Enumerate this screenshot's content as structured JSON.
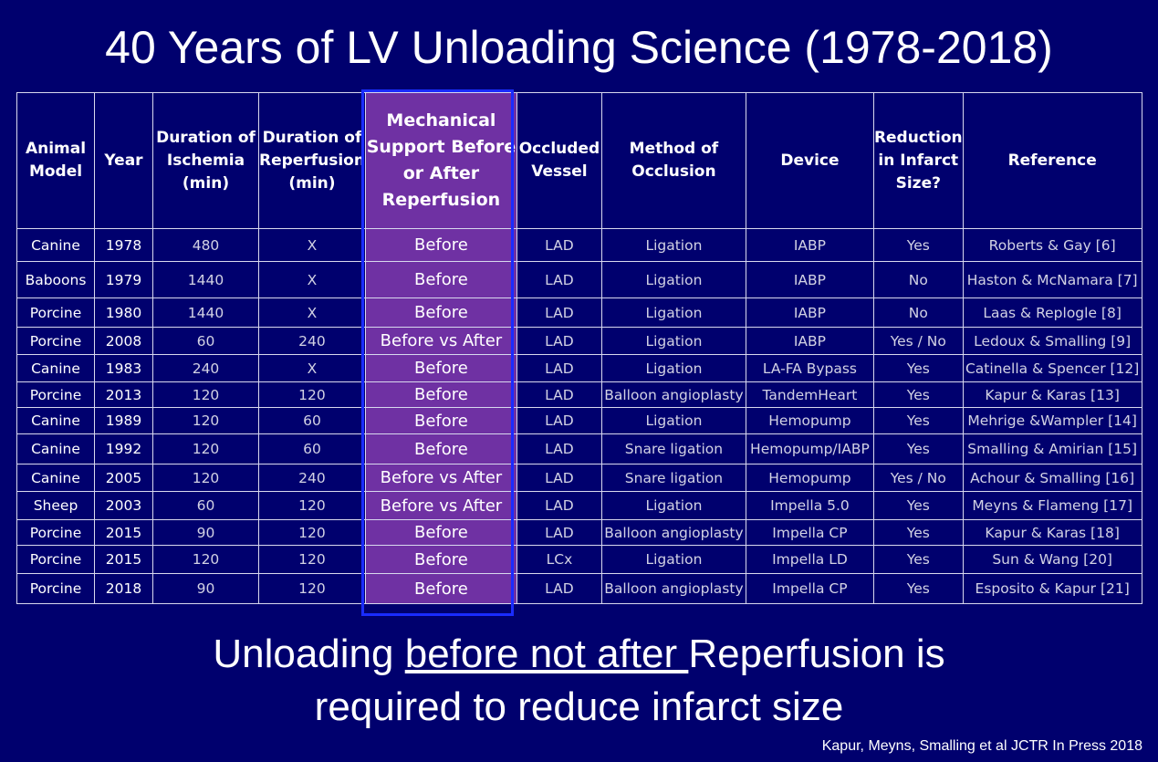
{
  "slide": {
    "title": "40 Years of LV Unloading Science (1978-2018)",
    "conclusion": {
      "before": "Unloading ",
      "underlined": "before not after ",
      "after": "Reperfusion is",
      "line2": "required to reduce infarct size"
    },
    "citation": "Kapur, Meyns, Smalling  et al JCTR In Press 2018"
  },
  "table": {
    "headers": [
      "Animal Model",
      "Year",
      "Duration of Ischemia (min)",
      "Duration of Reperfusion (min)",
      "Mechanical Support Before or After Reperfusion",
      "Occluded Vessel",
      "Method of Occlusion",
      "Device",
      "Reduction in Infarct Size?",
      "Reference"
    ],
    "highlight_color": "#6f31a3",
    "frame_color": "#1a2cff",
    "rows": [
      [
        "Canine",
        "1978",
        "480",
        "X",
        "Before",
        "LAD",
        "Ligation",
        "IABP",
        "Yes",
        "Roberts & Gay [6]"
      ],
      [
        "Baboons",
        "1979",
        "1440",
        "X",
        "Before",
        "LAD",
        "Ligation",
        "IABP",
        "No",
        "Haston  & McNamara [7]"
      ],
      [
        "Porcine",
        "1980",
        "1440",
        "X",
        "Before",
        "LAD",
        "Ligation",
        "IABP",
        "No",
        "Laas & Replogle [8]"
      ],
      [
        "Porcine",
        "2008",
        "60",
        "240",
        "Before vs After",
        "LAD",
        "Ligation",
        "IABP",
        "Yes / No",
        "Ledoux & Smalling [9]"
      ],
      [
        "Canine",
        "1983",
        "240",
        "X",
        "Before",
        "LAD",
        "Ligation",
        "LA-FA Bypass",
        "Yes",
        "Catinella & Spencer [12]"
      ],
      [
        "Porcine",
        "2013",
        "120",
        "120",
        "Before",
        "LAD",
        "Balloon angioplasty",
        "TandemHeart",
        "Yes",
        "Kapur & Karas [13]"
      ],
      [
        "Canine",
        "1989",
        "120",
        "60",
        "Before",
        "LAD",
        "Ligation",
        "Hemopump",
        "Yes",
        "Mehrige &Wampler [14]"
      ],
      [
        "Canine",
        "1992",
        "120",
        "60",
        "Before",
        "LAD",
        "Snare ligation",
        "Hemopump/IABP",
        "Yes",
        "Smalling & Amirian [15]"
      ],
      [
        "Canine",
        "2005",
        "120",
        "240",
        "Before vs After",
        "LAD",
        "Snare ligation",
        "Hemopump",
        "Yes / No",
        "Achour & Smalling [16]"
      ],
      [
        "Sheep",
        "2003",
        "60",
        "120",
        "Before vs After",
        "LAD",
        "Ligation",
        "Impella 5.0",
        "Yes",
        "Meyns & Flameng [17]"
      ],
      [
        "Porcine",
        "2015",
        "90",
        "120",
        "Before",
        "LAD",
        "Balloon angioplasty",
        "Impella CP",
        "Yes",
        "Kapur & Karas [18]"
      ],
      [
        "Porcine",
        "2015",
        "120",
        "120",
        "Before",
        "LCx",
        "Ligation",
        "Impella LD",
        "Yes",
        "Sun & Wang [20]"
      ],
      [
        "Porcine",
        "2018",
        "90",
        "120",
        "Before",
        "LAD",
        "Balloon angioplasty",
        "Impella CP",
        "Yes",
        "Esposito & Kapur [21]"
      ]
    ]
  }
}
